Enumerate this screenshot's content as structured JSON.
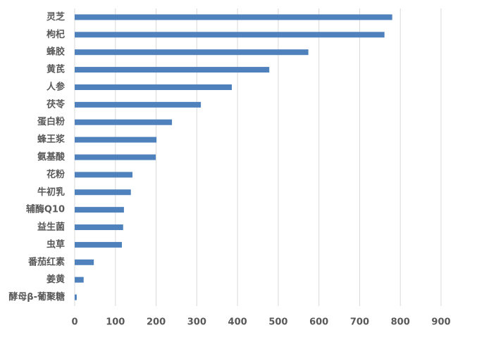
{
  "chart_data": {
    "type": "hbar",
    "categories": [
      "灵芝",
      "枸杞",
      "蜂胶",
      "黄芪",
      "人参",
      "茯苓",
      "蛋白粉",
      "蜂王浆",
      "氨基酸",
      "花粉",
      "牛初乳",
      "辅酶Q10",
      "益生菌",
      "虫草",
      "番茄红素",
      "姜黄",
      "酵母β-葡聚糖"
    ],
    "values": [
      780,
      761,
      574,
      478,
      386,
      310,
      239,
      201,
      199,
      142,
      138,
      121,
      119,
      116,
      47,
      22,
      5
    ],
    "color": "#4f81bd",
    "xlim": [
      0,
      900
    ],
    "xticks": [
      0,
      100,
      200,
      300,
      400,
      500,
      600,
      700,
      800,
      900
    ],
    "grid": true
  }
}
